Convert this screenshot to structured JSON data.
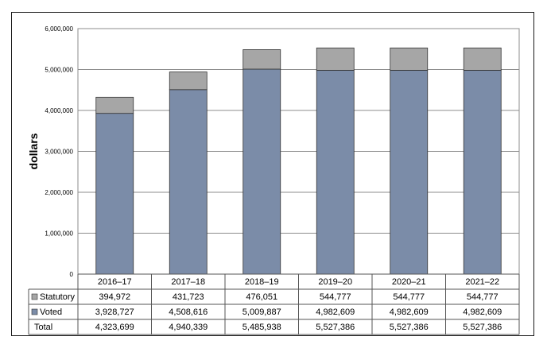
{
  "chart_data": {
    "type": "bar",
    "stacked": true,
    "ylabel": "dollars",
    "ylim": [
      0,
      6000000
    ],
    "yticks": [
      "0",
      "1,000,000",
      "2,000,000",
      "3,000,000",
      "4,000,000",
      "5,000,000",
      "6,000,000"
    ],
    "grid": true,
    "categories": [
      "2016–17",
      "2017–18",
      "2018–19",
      "2019–20",
      "2020–21",
      "2021–22"
    ],
    "series": [
      {
        "name": "Voted",
        "color": "#7b8ca8",
        "values": [
          3928727,
          4508616,
          5009887,
          4982609,
          4982609,
          4982609
        ],
        "labels": [
          "3,928,727",
          "4,508,616",
          "5,009,887",
          "4,982,609",
          "4,982,609",
          "4,982,609"
        ]
      },
      {
        "name": "Statutory",
        "color": "#a6a6a6",
        "values": [
          394972,
          431723,
          476051,
          544777,
          544777,
          544777
        ],
        "labels": [
          "394,972",
          "431,723",
          "476,051",
          "544,777",
          "544,777",
          "544,777"
        ]
      }
    ],
    "total": {
      "name": "Total",
      "labels": [
        "4,323,699",
        "4,940,339",
        "5,485,938",
        "5,527,386",
        "5,527,386",
        "5,527,386"
      ]
    }
  }
}
